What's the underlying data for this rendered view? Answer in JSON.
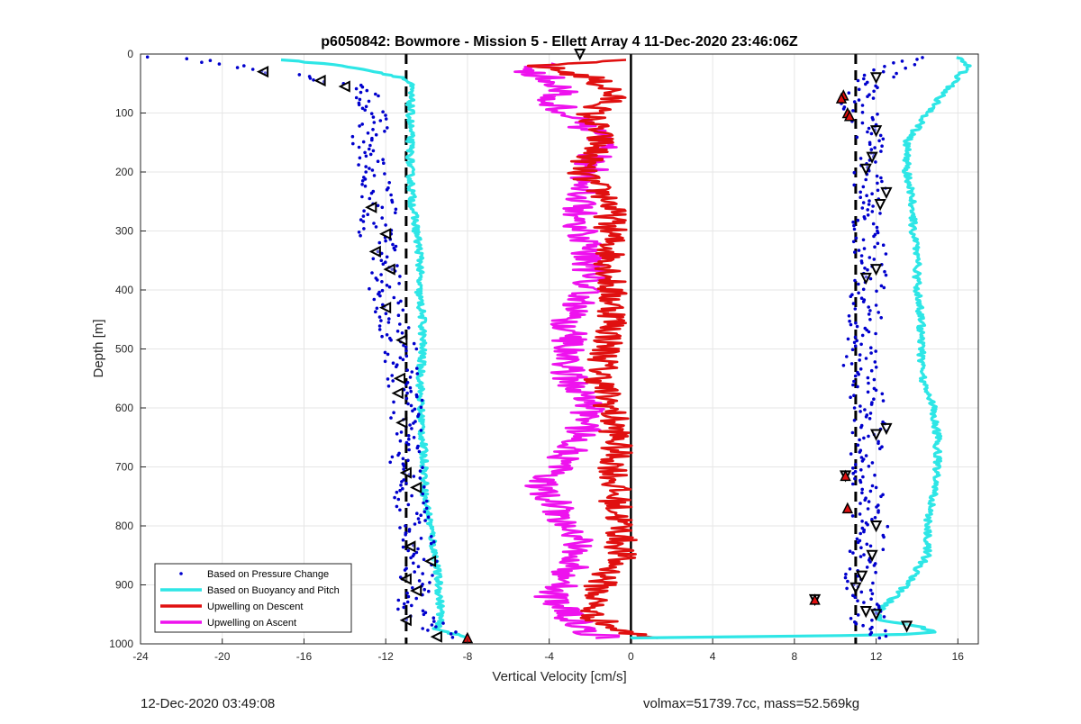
{
  "chart_data": {
    "type": "line",
    "title": "p6050842: Bowmore - Mission 5 - Ellett Array 4 11-Dec-2020 23:46:06Z",
    "xlabel": "Vertical Velocity [cm/s]",
    "ylabel": "Depth [m]",
    "xlim": [
      -24,
      17
    ],
    "ylim": [
      1000,
      0
    ],
    "y_reversed": true,
    "grid": true,
    "legend_position": "bottom-left",
    "x_ticks": [
      "-24",
      "-20",
      "-16",
      "-12",
      "-8",
      "-4",
      "0",
      "4",
      "8",
      "12",
      "16"
    ],
    "y_ticks": [
      "0",
      "100",
      "200",
      "300",
      "400",
      "500",
      "600",
      "700",
      "800",
      "900",
      "1000"
    ],
    "reference_lines": [
      {
        "x": -11,
        "style": "dashed",
        "color": "#000000"
      },
      {
        "x": 0,
        "style": "solid",
        "color": "#000000"
      },
      {
        "x": 11,
        "style": "dashed",
        "color": "#000000"
      }
    ],
    "series": [
      {
        "name": "Based on Pressure Change",
        "color": "#0000cd",
        "marker": "dot",
        "descent": {
          "depth": [
            5,
            20,
            40,
            60,
            80,
            100,
            150,
            200,
            250,
            300,
            350,
            400,
            450,
            500,
            550,
            600,
            650,
            700,
            750,
            800,
            850,
            900,
            950,
            990
          ],
          "velocity": [
            -23,
            -19,
            -16,
            -13,
            -12.5,
            -12.5,
            -13,
            -12.5,
            -12.3,
            -12.5,
            -12,
            -12,
            -11.7,
            -11.3,
            -11.2,
            -11,
            -11,
            -11,
            -10.8,
            -10.5,
            -10.3,
            -10.5,
            -10.8,
            -8.5
          ]
        },
        "ascent": {
          "depth": [
            990,
            950,
            900,
            850,
            800,
            750,
            700,
            650,
            600,
            550,
            500,
            450,
            400,
            350,
            300,
            250,
            200,
            150,
            100,
            80,
            60,
            40,
            20,
            5
          ],
          "velocity": [
            12,
            11.5,
            11.2,
            11.5,
            11.8,
            11.5,
            11.3,
            11.7,
            11.6,
            11.3,
            11.2,
            11.4,
            11.6,
            11.7,
            11.6,
            11.8,
            11.6,
            11.6,
            11.2,
            11,
            11.5,
            12,
            13,
            14.5
          ]
        }
      },
      {
        "name": "Based on Buoyancy and Pitch",
        "color": "#2ee6e6",
        "descent": {
          "depth": [
            10,
            20,
            30,
            40,
            50,
            75,
            100,
            150,
            200,
            250,
            300,
            350,
            400,
            450,
            500,
            550,
            600,
            650,
            700,
            750,
            800,
            850,
            900,
            950,
            975,
            990
          ],
          "velocity": [
            -17,
            -14,
            -12.5,
            -11.2,
            -10.8,
            -10.8,
            -10.8,
            -10.8,
            -10.8,
            -10.7,
            -10.5,
            -10.3,
            -10.4,
            -10.2,
            -10.2,
            -10.3,
            -10.3,
            -10.2,
            -10.1,
            -10.1,
            -9.8,
            -9.6,
            -9.4,
            -9.3,
            -9.5,
            -8
          ]
        },
        "ascent": {
          "depth": [
            990,
            985,
            980,
            970,
            960,
            950,
            900,
            850,
            800,
            750,
            700,
            650,
            600,
            550,
            500,
            450,
            400,
            350,
            300,
            250,
            200,
            150,
            100,
            60,
            40,
            20,
            5
          ],
          "velocity": [
            0,
            13,
            15,
            14,
            12.2,
            12,
            13.5,
            14.5,
            14.5,
            14.8,
            15,
            15,
            14.8,
            14.3,
            14.2,
            14.2,
            14,
            14,
            13.8,
            13.8,
            13.5,
            13.5,
            14.5,
            15.5,
            16,
            16.5,
            16
          ]
        }
      },
      {
        "name": "Upwelling on Descent",
        "color": "#e01010",
        "depth": [
          10,
          20,
          40,
          60,
          80,
          100,
          150,
          200,
          250,
          300,
          350,
          400,
          450,
          500,
          550,
          600,
          650,
          700,
          750,
          800,
          850,
          900,
          950,
          980,
          990
        ],
        "velocity": [
          -1,
          -4.5,
          -2,
          -1,
          -1,
          -2,
          -1.5,
          -2.5,
          -1,
          -1,
          -1,
          -1,
          -0.8,
          -1.2,
          -1.5,
          -1,
          -0.7,
          -0.8,
          -0.8,
          -0.5,
          -0.5,
          -1.5,
          -2,
          -0.5,
          1.5
        ]
      },
      {
        "name": "Upwelling on Ascent",
        "color": "#ee12ee",
        "depth": [
          990,
          975,
          950,
          925,
          900,
          850,
          800,
          750,
          720,
          700,
          650,
          600,
          550,
          500,
          450,
          400,
          350,
          300,
          250,
          200,
          150,
          100,
          80,
          60,
          40,
          25,
          15
        ],
        "velocity": [
          -1,
          -2.5,
          -3,
          -4,
          -3.5,
          -2.5,
          -3,
          -4,
          -4.5,
          -3.5,
          -2.5,
          -2,
          -3,
          -3,
          -3,
          -2,
          -2,
          -2.5,
          -2.5,
          -2,
          -1.5,
          -3,
          -4,
          -3,
          -4,
          -6,
          -3
        ]
      },
      {
        "name": "Descent markers",
        "color": "#000000",
        "marker": "triangle-left",
        "depth": [
          30,
          45,
          55,
          260,
          305,
          335,
          365,
          430,
          485,
          550,
          575,
          625,
          710,
          735,
          835,
          860,
          890,
          910,
          960,
          988
        ],
        "velocity": [
          -18,
          -15.2,
          -14,
          -12.7,
          -12,
          -12.5,
          -11.8,
          -12,
          -11.2,
          -11.3,
          -11.4,
          -11.2,
          -11,
          -10.5,
          -10.8,
          -9.8,
          -11,
          -10.5,
          -11,
          -9.5
        ]
      },
      {
        "name": "Ascent markers",
        "color": "#000000",
        "marker": "triangle-down",
        "depth": [
          0,
          40,
          130,
          175,
          195,
          235,
          255,
          365,
          380,
          635,
          645,
          715,
          800,
          850,
          885,
          905,
          925,
          945,
          950,
          970
        ],
        "velocity": [
          -2.5,
          12,
          12,
          11.8,
          11.5,
          12.5,
          12.2,
          12,
          11.5,
          12.5,
          12,
          10.5,
          12,
          11.8,
          11.3,
          11,
          9,
          11.5,
          12,
          13.5
        ]
      },
      {
        "name": "Red flagged points",
        "color": "#e01010",
        "marker": "triangle-up",
        "depth": [
          70,
          75,
          100,
          105,
          715,
          770,
          925,
          990
        ],
        "velocity": [
          10.4,
          10.3,
          10.6,
          10.7,
          10.5,
          10.6,
          9,
          -8
        ]
      }
    ],
    "legend": [
      {
        "label": "Based on Pressure Change",
        "color": "#0000cd",
        "style": "dot"
      },
      {
        "label": "Based on Buoyancy and Pitch",
        "color": "#2ee6e6",
        "style": "line"
      },
      {
        "label": "Upwelling on Descent",
        "color": "#e01010",
        "style": "line"
      },
      {
        "label": "Upwelling on Ascent",
        "color": "#ee12ee",
        "style": "line"
      }
    ]
  },
  "footer": {
    "left": "12-Dec-2020 03:49:08",
    "right": "volmax=51739.7cc, mass=52.569kg"
  }
}
